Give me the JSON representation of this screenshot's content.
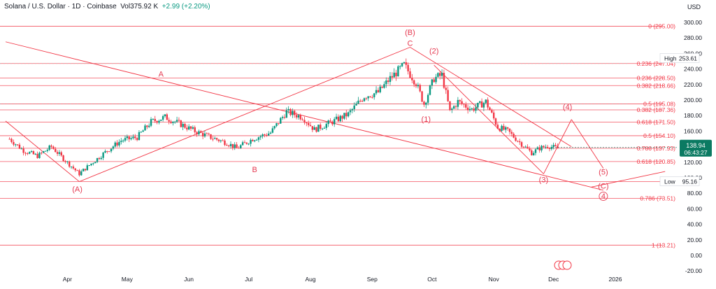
{
  "header": {
    "symbol": "Solana / U.S. Dollar · 1D · Coinbase",
    "volume_label": "Vol",
    "volume": "375.92 K",
    "change": "+2.99 (+2.20%)"
  },
  "currency": "USD",
  "colors": {
    "up": "#089981",
    "down": "#f23645",
    "fib": "#f23645",
    "annotation": "#e53950",
    "axis_text": "#131722",
    "price_tag": "#0b7a62"
  },
  "chart_data": {
    "type": "candlestick",
    "y_axis": {
      "min": -20,
      "max": 320,
      "ticks": [
        "300.00",
        "280.00",
        "260.00",
        "240.00",
        "220.00",
        "200.00",
        "180.00",
        "160.00",
        "140.00",
        "120.00",
        "100.00",
        "80.00",
        "60.00",
        "40.00",
        "20.00",
        "0.00",
        "-20.00"
      ]
    },
    "x_axis": {
      "ticks": [
        {
          "label": "Apr",
          "date": "2025-04-01"
        },
        {
          "label": "May",
          "date": "2025-05-01"
        },
        {
          "label": "Jun",
          "date": "2025-06-01"
        },
        {
          "label": "Jul",
          "date": "2025-07-01"
        },
        {
          "label": "Aug",
          "date": "2025-08-01"
        },
        {
          "label": "Sep",
          "date": "2025-09-01"
        },
        {
          "label": "Oct",
          "date": "2025-10-01"
        },
        {
          "label": "Nov",
          "date": "2025-11-01"
        },
        {
          "label": "Dec",
          "date": "2025-12-01"
        },
        {
          "label": "2026",
          "date": "2026-01-01"
        }
      ]
    },
    "price_path": [
      [
        "2025-03-03",
        150
      ],
      [
        "2025-03-10",
        135
      ],
      [
        "2025-03-17",
        128
      ],
      [
        "2025-03-24",
        140
      ],
      [
        "2025-03-31",
        122
      ],
      [
        "2025-04-07",
        105
      ],
      [
        "2025-04-10",
        112
      ],
      [
        "2025-04-21",
        135
      ],
      [
        "2025-04-28",
        148
      ],
      [
        "2025-05-06",
        152
      ],
      [
        "2025-05-13",
        172
      ],
      [
        "2025-05-20",
        178
      ],
      [
        "2025-05-27",
        170
      ],
      [
        "2025-06-04",
        160
      ],
      [
        "2025-06-12",
        152
      ],
      [
        "2025-06-20",
        145
      ],
      [
        "2025-06-25",
        138
      ],
      [
        "2025-07-03",
        150
      ],
      [
        "2025-07-12",
        158
      ],
      [
        "2025-07-20",
        185
      ],
      [
        "2025-07-28",
        178
      ],
      [
        "2025-08-03",
        162
      ],
      [
        "2025-08-12",
        172
      ],
      [
        "2025-08-20",
        182
      ],
      [
        "2025-08-28",
        205
      ],
      [
        "2025-09-04",
        210
      ],
      [
        "2025-09-10",
        228
      ],
      [
        "2025-09-17",
        245
      ],
      [
        "2025-09-23",
        222
      ],
      [
        "2025-09-27",
        195
      ],
      [
        "2025-10-02",
        228
      ],
      [
        "2025-10-06",
        232
      ],
      [
        "2025-10-10",
        185
      ],
      [
        "2025-10-14",
        198
      ],
      [
        "2025-10-21",
        188
      ],
      [
        "2025-10-28",
        198
      ],
      [
        "2025-11-03",
        165
      ],
      [
        "2025-11-08",
        160
      ],
      [
        "2025-11-13",
        148
      ],
      [
        "2025-11-20",
        132
      ],
      [
        "2025-11-24",
        138
      ],
      [
        "2025-11-28",
        141
      ],
      [
        "2025-12-03",
        138
      ]
    ],
    "current_price": {
      "value": 138.94,
      "label": "138.94",
      "countdown": "06:43:27"
    },
    "high": {
      "label": "High",
      "value": "253.61",
      "price": 253.61
    },
    "low": {
      "label": "Low",
      "value": "95.16",
      "price": 95.16
    },
    "fib_levels": [
      {
        "price": 295.0,
        "label": "0 (295.00)"
      },
      {
        "price": 247.04,
        "label": "0.236 (247.04)"
      },
      {
        "price": 228.5,
        "label": "0.236 (228.50)"
      },
      {
        "price": 218.66,
        "label": "0.382 (218.66)"
      },
      {
        "price": 195.08,
        "label": "0.5 (195.08)"
      },
      {
        "price": 187.36,
        "label": "0.382 (187.36)"
      },
      {
        "price": 171.5,
        "label": "0.618 (171.50)"
      },
      {
        "price": 154.1,
        "label": "0.5 (154.10)"
      },
      {
        "price": 137.93,
        "label": "0.786 (137.93)"
      },
      {
        "price": 120.85,
        "label": "0.618 (120.85)"
      },
      {
        "price": 95.16,
        "label": "1 (95"
      },
      {
        "price": 73.51,
        "label": "0.786 (73.51)"
      },
      {
        "price": 13.21,
        "label": "1 (13.21)"
      }
    ],
    "wave_labels": [
      {
        "text": "(B)",
        "date": "2025-09-20",
        "price": 284
      },
      {
        "text": "C",
        "date": "2025-09-20",
        "price": 270
      },
      {
        "text": "(2)",
        "date": "2025-10-02",
        "price": 260
      },
      {
        "text": "A",
        "date": "2025-05-18",
        "price": 230
      },
      {
        "text": "(1)",
        "date": "2025-09-28",
        "price": 172
      },
      {
        "text": "(4)",
        "date": "2025-12-08",
        "price": 188
      },
      {
        "text": "(A)",
        "date": "2025-04-06",
        "price": 82
      },
      {
        "text": "B",
        "date": "2025-07-04",
        "price": 107
      },
      {
        "text": "(3)",
        "date": "2025-11-26",
        "price": 94
      },
      {
        "text": "(5)",
        "date": "2025-12-26",
        "price": 104
      },
      {
        "text": "(C)",
        "date": "2025-12-26",
        "price": 86
      },
      {
        "text": "4",
        "date": "2025-12-26",
        "price": 73,
        "circled": true
      }
    ],
    "trend_lines": [
      {
        "from": [
          "2025-03-01",
          275
        ],
        "to": [
          "2025-12-26",
          84
        ]
      },
      {
        "from": [
          "2025-03-01",
          173
        ],
        "to": [
          "2025-04-07",
          95
        ]
      },
      {
        "from": [
          "2025-04-07",
          95
        ],
        "to": [
          "2025-09-20",
          268
        ]
      },
      {
        "from": [
          "2025-09-20",
          268
        ],
        "to": [
          "2025-12-10",
          140
        ]
      },
      {
        "from": [
          "2025-10-02",
          245
        ],
        "to": [
          "2025-11-26",
          105
        ]
      },
      {
        "from": [
          "2025-11-26",
          105
        ],
        "to": [
          "2025-12-10",
          175
        ]
      },
      {
        "from": [
          "2025-12-10",
          175
        ],
        "to": [
          "2025-12-26",
          112
        ]
      },
      {
        "from": [
          "2025-12-20",
          88
        ],
        "to": [
          "2026-01-26",
          108
        ]
      }
    ]
  }
}
